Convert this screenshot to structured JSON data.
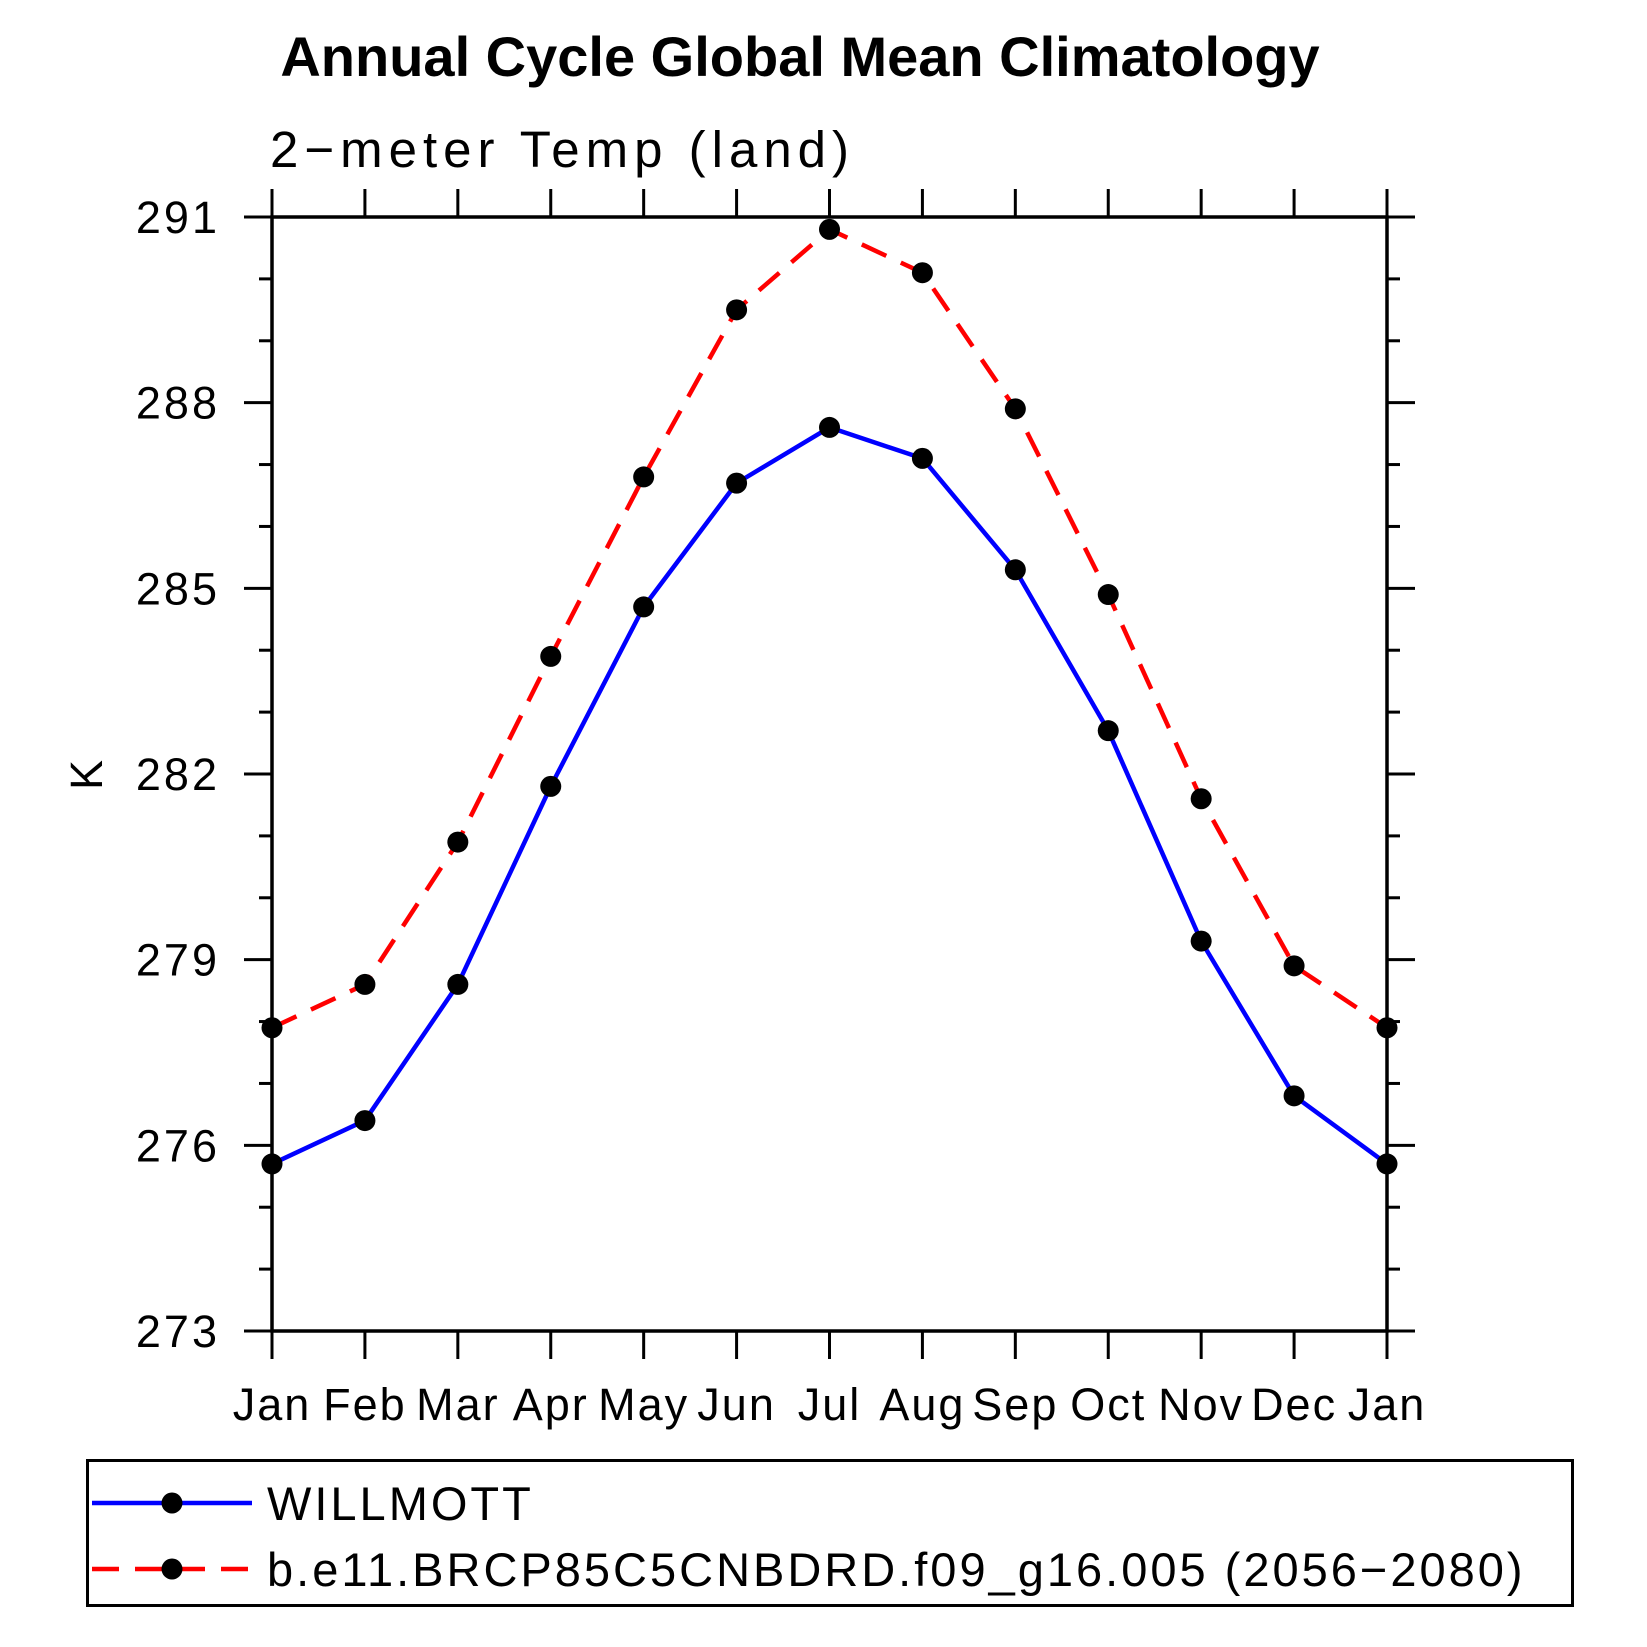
{
  "chart": {
    "title": "Annual Cycle Global Mean Climatology",
    "subtitle": "2−meter Temp (land)",
    "ylabel": "K"
  },
  "chart_data": {
    "type": "line",
    "title": "Annual Cycle Global Mean Climatology",
    "subtitle": "2−meter Temp (land)",
    "xlabel": "",
    "ylabel": "K",
    "categories": [
      "Jan",
      "Feb",
      "Mar",
      "Apr",
      "May",
      "Jun",
      "Jul",
      "Aug",
      "Sep",
      "Oct",
      "Nov",
      "Dec",
      "Jan"
    ],
    "ylim": [
      273,
      291
    ],
    "yticks": [
      273,
      276,
      279,
      282,
      285,
      288,
      291
    ],
    "minor_tick_interval_k": 1,
    "grid": "off",
    "legend_position": "bottom-box",
    "marker": "filled-circle",
    "marker_color": "#000000",
    "axis_color": "#000000",
    "series": [
      {
        "name": "WILLMOTT",
        "color": "#0000ff",
        "style": "solid",
        "values": [
          275.7,
          276.4,
          278.6,
          281.8,
          284.7,
          286.7,
          287.6,
          287.1,
          285.3,
          282.7,
          279.3,
          276.8,
          275.7
        ]
      },
      {
        "name": "b.e11.BRCP85C5CNBDRD.f09_g16.005 (2056−2080)",
        "color": "#ff0000",
        "style": "dashed",
        "values": [
          277.9,
          278.6,
          280.9,
          283.9,
          286.8,
          289.5,
          290.8,
          290.1,
          287.9,
          284.9,
          281.6,
          278.9,
          277.9
        ]
      }
    ]
  }
}
